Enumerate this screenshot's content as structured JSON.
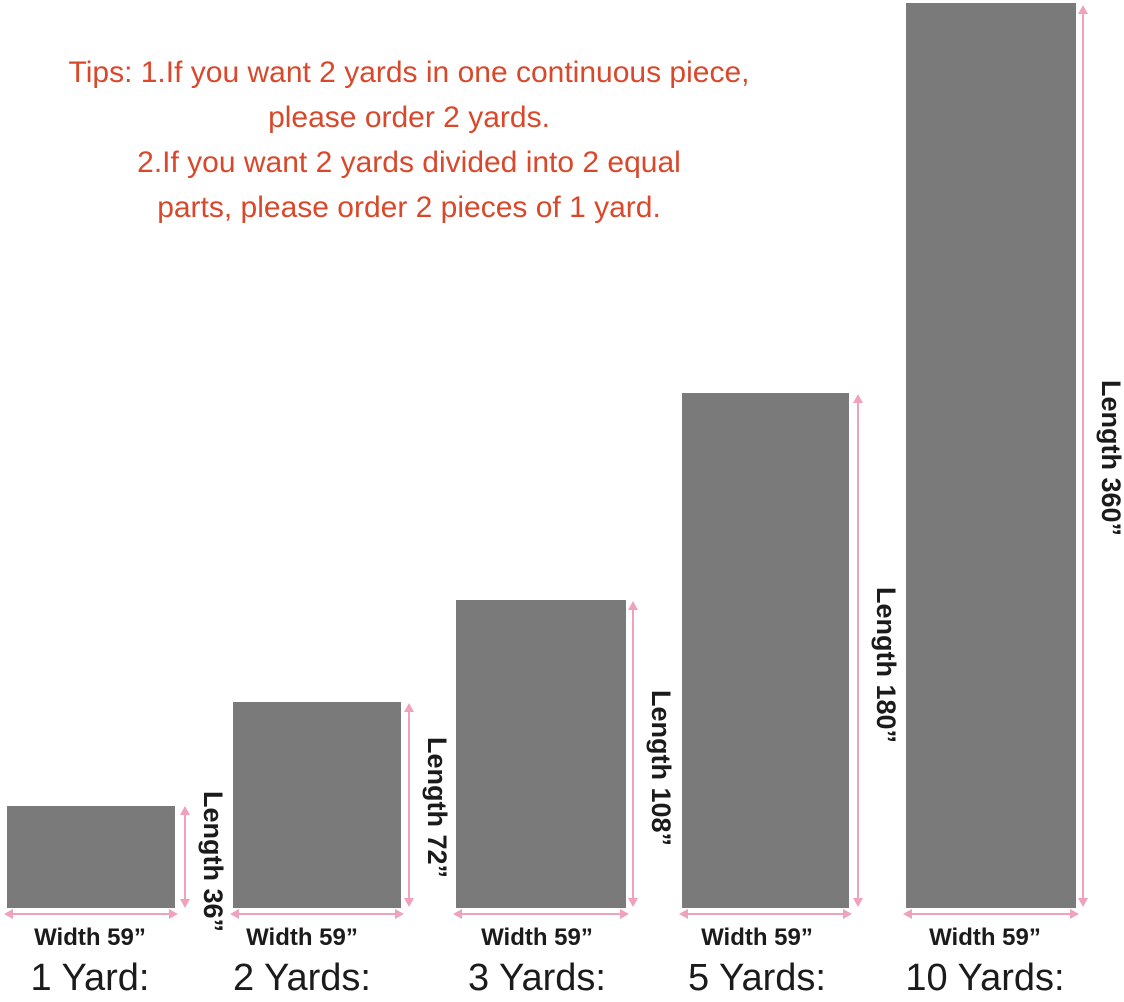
{
  "tips": {
    "lines": [
      "Tips: 1.If you want 2 yards in one continuous piece,",
      "please order 2 yards.",
      "2.If you want 2 yards divided into 2 equal",
      "parts, please order 2 pieces of 1 yard."
    ],
    "color": "#d9482b"
  },
  "bars": [
    {
      "yard_label": "1 Yard:",
      "width_label": "Width 59”",
      "length_label": "Length 36”"
    },
    {
      "yard_label": "2 Yards:",
      "width_label": "Width 59”",
      "length_label": "Length 72”"
    },
    {
      "yard_label": "3 Yards:",
      "width_label": "Width 59”",
      "length_label": "Length 108”"
    },
    {
      "yard_label": "5 Yards:",
      "width_label": "Width 59”",
      "length_label": "Length 180”"
    },
    {
      "yard_label": "10 Yards:",
      "width_label": "Width 59”",
      "length_label": "Length 360”"
    }
  ],
  "chart_data": {
    "type": "bar",
    "categories": [
      "1 Yard:",
      "2 Yards:",
      "3 Yards:",
      "5 Yards:",
      "10 Yards:"
    ],
    "series": [
      {
        "name": "Length (inches)",
        "values": [
          36,
          72,
          108,
          180,
          360
        ]
      },
      {
        "name": "Width (inches)",
        "values": [
          59,
          59,
          59,
          59,
          59
        ]
      }
    ],
    "bar_length_labels": [
      "Length 36”",
      "Length 72”",
      "Length 108”",
      "Length 180”",
      "Length 360”"
    ],
    "bar_width_labels": [
      "Width 59”",
      "Width 59”",
      "Width 59”",
      "Width 59”",
      "Width 59”"
    ],
    "orientation": "vertical",
    "grid": false,
    "legend": false,
    "axes_shown": false,
    "title": ""
  },
  "colors": {
    "bar_fill": "#7a7a7a",
    "arrow_pink": "#f0a1bd",
    "tips_red": "#d9482b",
    "label_black": "#1b1b1b",
    "background": "#ffffff"
  }
}
